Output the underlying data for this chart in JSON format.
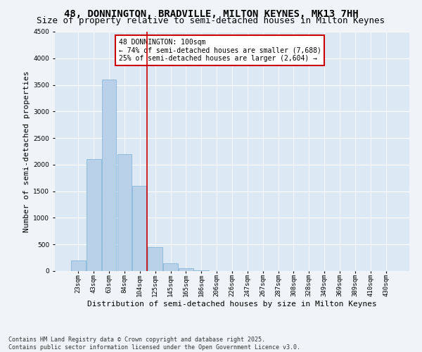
{
  "title": "48, DONNINGTON, BRADVILLE, MILTON KEYNES, MK13 7HH",
  "subtitle": "Size of property relative to semi-detached houses in Milton Keynes",
  "xlabel": "Distribution of semi-detached houses by size in Milton Keynes",
  "ylabel": "Number of semi-detached properties",
  "categories": [
    "23sqm",
    "43sqm",
    "63sqm",
    "84sqm",
    "104sqm",
    "125sqm",
    "145sqm",
    "165sqm",
    "186sqm",
    "206sqm",
    "226sqm",
    "247sqm",
    "267sqm",
    "287sqm",
    "308sqm",
    "328sqm",
    "349sqm",
    "369sqm",
    "389sqm",
    "410sqm",
    "430sqm"
  ],
  "values": [
    200,
    2100,
    3600,
    2200,
    1600,
    450,
    150,
    50,
    10,
    0,
    0,
    0,
    0,
    0,
    0,
    0,
    0,
    0,
    0,
    0,
    0
  ],
  "bar_color": "#b8d0e8",
  "bar_edge_color": "#7aafd4",
  "background_color": "#dce9f5",
  "grid_color": "#ffffff",
  "vline_color": "#cc0000",
  "annotation_text": "48 DONNINGTON: 100sqm\n← 74% of semi-detached houses are smaller (7,688)\n25% of semi-detached houses are larger (2,604) →",
  "annotation_box_color": "#cc0000",
  "ylim": [
    0,
    4500
  ],
  "yticks": [
    0,
    500,
    1000,
    1500,
    2000,
    2500,
    3000,
    3500,
    4000,
    4500
  ],
  "footnote": "Contains HM Land Registry data © Crown copyright and database right 2025.\nContains public sector information licensed under the Open Government Licence v3.0.",
  "title_fontsize": 10,
  "subtitle_fontsize": 9,
  "axis_label_fontsize": 8,
  "tick_fontsize": 6.5,
  "annotation_fontsize": 7,
  "footnote_fontsize": 6
}
